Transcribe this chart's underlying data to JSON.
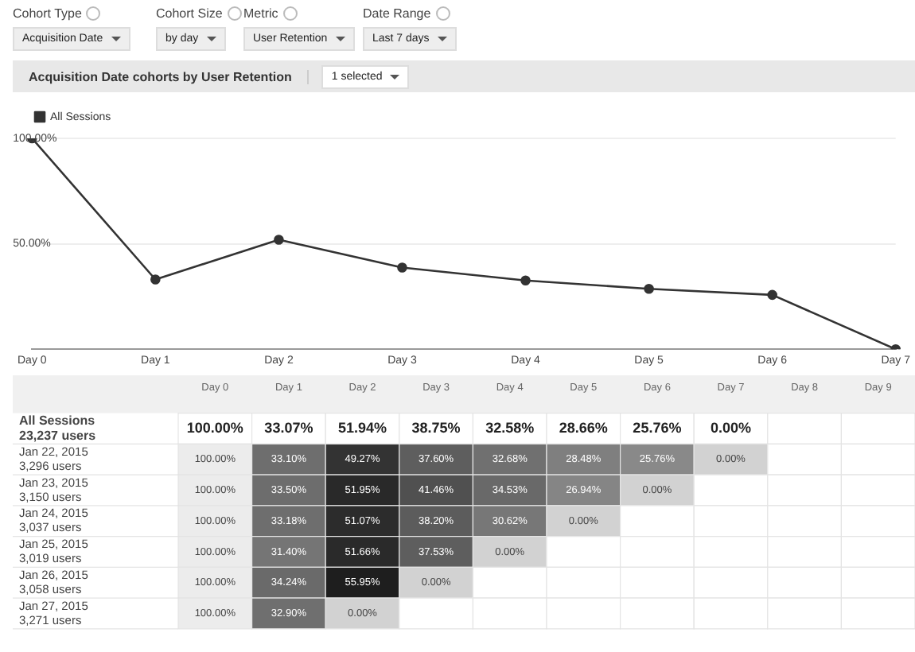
{
  "chart_data": [
    {
      "type": "line",
      "title": "Acquisition Date cohorts by User Retention",
      "annotations": [
        "Cohort Type",
        "Acquisition Date",
        "Cohort Size",
        "by day",
        "Metric",
        "User Retention",
        "Date Range",
        "Last 7 days",
        "1 selected"
      ],
      "categories": [
        "Day 0",
        "Day 1",
        "Day 2",
        "Day 3",
        "Day 4",
        "Day 5",
        "Day 6",
        "Day 7"
      ],
      "series": [
        {
          "name": "All Sessions",
          "color": "#333333",
          "values": [
            100.0,
            33.07,
            51.94,
            38.75,
            32.58,
            28.66,
            25.76,
            0.0
          ]
        }
      ],
      "ylim": [
        0,
        100
      ],
      "yticks": [
        {
          "value": 0,
          "label": null
        },
        {
          "value": 50,
          "label": "50.00%"
        },
        {
          "value": 100,
          "label": "100.00%"
        }
      ],
      "grid": "y",
      "legend": "top left",
      "marker": "circle"
    },
    {
      "type": "heatmap",
      "categories": [
        "Day 0",
        "Day 1",
        "Day 2",
        "Day 3",
        "Day 4",
        "Day 5",
        "Day 6",
        "Day 7",
        "Day 8",
        "Day 9"
      ],
      "y_categories": [
        "All Sessions\n23,237 users",
        "Jan 22, 2015\n3,296 users",
        "Jan 23, 2015\n3,150 users",
        "Jan 24, 2015\n3,037 users",
        "Jan 25, 2015\n3,019 users",
        "Jan 26, 2015\n3,058 users",
        "Jan 27, 2015\n3,271 users"
      ],
      "cells": [
        [
          100.0,
          33.07,
          51.94,
          38.75,
          32.58,
          28.66,
          25.76,
          0.0,
          null,
          null
        ],
        [
          100.0,
          33.1,
          49.27,
          37.6,
          32.68,
          28.48,
          25.76,
          0.0,
          null,
          null
        ],
        [
          100.0,
          33.5,
          51.95,
          41.46,
          34.53,
          26.94,
          0.0,
          null,
          null,
          null
        ],
        [
          100.0,
          33.18,
          51.07,
          38.2,
          30.62,
          0.0,
          null,
          null,
          null,
          null
        ],
        [
          100.0,
          31.4,
          51.66,
          37.53,
          0.0,
          null,
          null,
          null,
          null,
          null
        ],
        [
          100.0,
          34.24,
          55.95,
          0.0,
          null,
          null,
          null,
          null,
          null,
          null
        ],
        [
          100.0,
          32.9,
          0.0,
          null,
          null,
          null,
          null,
          null,
          null,
          null
        ]
      ],
      "cell_labels": [
        [
          "100.00%",
          "33.07%",
          "51.94%",
          "38.75%",
          "32.58%",
          "28.66%",
          "25.76%",
          "0.00%",
          null,
          null
        ],
        [
          "100.00%",
          "33.10%",
          "49.27%",
          "37.60%",
          "32.68%",
          "28.48%",
          "25.76%",
          "0.00%",
          null,
          null
        ],
        [
          "100.00%",
          "33.50%",
          "51.95%",
          "41.46%",
          "34.53%",
          "26.94%",
          "0.00%",
          null,
          null,
          null
        ],
        [
          "100.00%",
          "33.18%",
          "51.07%",
          "38.20%",
          "30.62%",
          "0.00%",
          null,
          null,
          null,
          null
        ],
        [
          "100.00%",
          "31.40%",
          "51.66%",
          "37.53%",
          "0.00%",
          null,
          null,
          null,
          null,
          null
        ],
        [
          "100.00%",
          "34.24%",
          "55.95%",
          "0.00%",
          null,
          null,
          null,
          null,
          null,
          null
        ],
        [
          "100.00%",
          "32.90%",
          "0.00%",
          null,
          null,
          null,
          null,
          null,
          null,
          null
        ]
      ]
    }
  ]
}
